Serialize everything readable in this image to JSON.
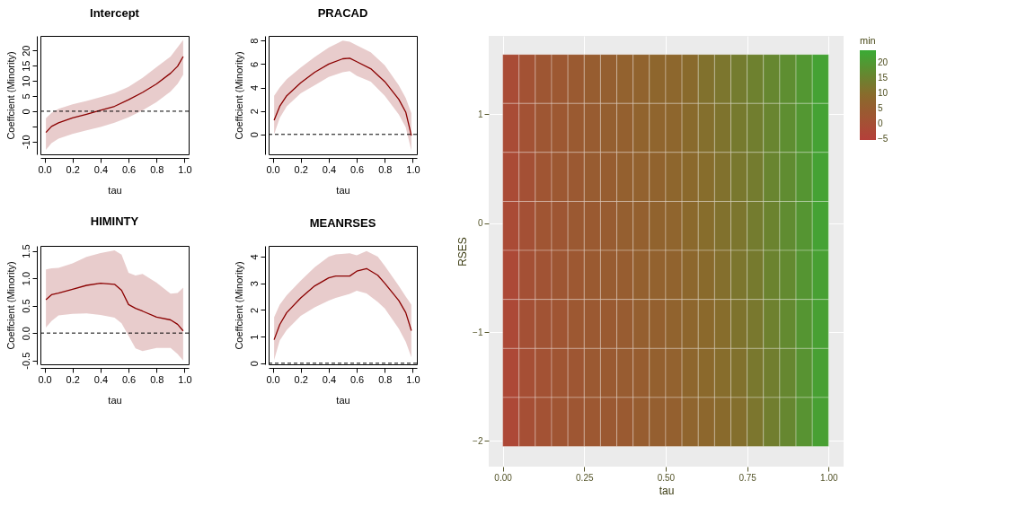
{
  "chart_data": [
    {
      "type": "line",
      "title": "Intercept",
      "xlabel": "tau",
      "ylabel": "Coeffcient (Minority)",
      "xlim": [
        -0.0292,
        1.0292
      ],
      "xticks": [
        {
          "value": 0,
          "label": "0.0"
        },
        {
          "value": 0.2,
          "label": "0.2"
        },
        {
          "value": 0.4,
          "label": "0.4"
        },
        {
          "value": 0.6,
          "label": "0.6"
        },
        {
          "value": 0.8,
          "label": "0.8"
        },
        {
          "value": 1,
          "label": "1.0"
        }
      ],
      "ylim": [
        -14.2,
        24.8
      ],
      "yticks": [
        -10,
        {
          "value": -5,
          "label": null
        },
        0,
        5,
        10,
        15,
        20
      ],
      "x": [
        0.01,
        0.05,
        0.1,
        0.2,
        0.3,
        0.4,
        0.5,
        0.6,
        0.7,
        0.8,
        0.9,
        0.95,
        0.99
      ],
      "series": [
        {
          "color": "#8b0000",
          "values": [
            -7,
            -5,
            -3.8,
            -2.2,
            -1,
            0.3,
            1.6,
            3.8,
            6.2,
            9,
            12.5,
            14.8,
            18
          ],
          "lower": [
            -12.7,
            -10.5,
            -9,
            -7.5,
            -6.3,
            -5.2,
            -3.8,
            -2,
            0.3,
            3,
            6.5,
            9,
            12
          ],
          "upper": [
            -2.3,
            -0.5,
            0.8,
            2.3,
            3.4,
            4.6,
            6,
            8,
            11,
            14.5,
            18,
            21,
            23.5
          ]
        }
      ],
      "ref_lines": [
        {
          "axis": "y",
          "value": 0,
          "line_style": "dashed"
        }
      ]
    },
    {
      "type": "line",
      "title": "PRACAD",
      "xlabel": "tau",
      "ylabel": "Coeffcient (Minority)",
      "xlim": [
        -0.0292,
        1.0292
      ],
      "xticks": [
        {
          "value": 0,
          "label": "0.0"
        },
        {
          "value": 0.2,
          "label": "0.2"
        },
        {
          "value": 0.4,
          "label": "0.4"
        },
        {
          "value": 0.6,
          "label": "0.6"
        },
        {
          "value": 0.8,
          "label": "0.8"
        },
        {
          "value": 1,
          "label": "1.0"
        }
      ],
      "ylim": [
        -1.7,
        8.4
      ],
      "yticks": [
        0,
        2,
        4,
        6,
        8
      ],
      "x": [
        0.01,
        0.05,
        0.1,
        0.2,
        0.3,
        0.4,
        0.5,
        0.55,
        0.6,
        0.7,
        0.8,
        0.9,
        0.95,
        0.99
      ],
      "series": [
        {
          "color": "#8b0000",
          "values": [
            1.2,
            2.4,
            3.3,
            4.4,
            5.3,
            6.0,
            6.45,
            6.5,
            6.2,
            5.6,
            4.5,
            3.0,
            1.9,
            -0.1
          ],
          "lower": [
            0,
            1.4,
            2.4,
            3.5,
            4.2,
            4.9,
            5.3,
            5.4,
            5.0,
            4.5,
            3.3,
            1.7,
            0.6,
            -1.4
          ],
          "upper": [
            3.3,
            4.0,
            4.7,
            5.7,
            6.6,
            7.4,
            8.0,
            7.9,
            7.6,
            7.0,
            5.9,
            4.2,
            3.1,
            1.8
          ]
        }
      ],
      "ref_lines": [
        {
          "axis": "y",
          "value": 0,
          "line_style": "dashed"
        }
      ]
    },
    {
      "type": "line",
      "title": "HIMINTY",
      "xlabel": "tau",
      "ylabel": "Coeffcient (Minority)",
      "xlim": [
        -0.0292,
        1.0292
      ],
      "xticks": [
        {
          "value": 0,
          "label": "0.0"
        },
        {
          "value": 0.2,
          "label": "0.2"
        },
        {
          "value": 0.4,
          "label": "0.4"
        },
        {
          "value": 0.6,
          "label": "0.6"
        },
        {
          "value": 0.8,
          "label": "0.8"
        },
        {
          "value": 1,
          "label": "1.0"
        }
      ],
      "ylim": [
        -0.57,
        1.59
      ],
      "yticks": [
        {
          "value": -0.5,
          "label": "-0.5"
        },
        {
          "value": 0,
          "label": "0.0"
        },
        {
          "value": 0.5,
          "label": "0.5"
        },
        {
          "value": 1,
          "label": "1.0"
        },
        {
          "value": 1.5,
          "label": "1.5"
        }
      ],
      "x": [
        0.01,
        0.05,
        0.1,
        0.2,
        0.3,
        0.4,
        0.5,
        0.55,
        0.6,
        0.65,
        0.7,
        0.8,
        0.9,
        0.95,
        0.99
      ],
      "series": [
        {
          "color": "#8b0000",
          "values": [
            0.61,
            0.7,
            0.73,
            0.8,
            0.87,
            0.91,
            0.89,
            0.78,
            0.52,
            0.45,
            0.4,
            0.29,
            0.24,
            0.16,
            0.04
          ],
          "lower": [
            0.1,
            0.22,
            0.32,
            0.35,
            0.36,
            0.33,
            0.28,
            0.18,
            -0.05,
            -0.28,
            -0.33,
            -0.27,
            -0.27,
            -0.38,
            -0.5
          ],
          "upper": [
            1.16,
            1.18,
            1.19,
            1.27,
            1.39,
            1.46,
            1.51,
            1.43,
            1.1,
            1.05,
            1.08,
            0.92,
            0.72,
            0.73,
            0.83
          ]
        }
      ],
      "ref_lines": [
        {
          "axis": "y",
          "value": 0,
          "line_style": "dashed"
        }
      ]
    },
    {
      "type": "line",
      "title": "MEANRSES",
      "xlabel": "tau",
      "ylabel": "Coeffcient (Minority)",
      "xlim": [
        -0.0292,
        1.0292
      ],
      "xticks": [
        {
          "value": 0,
          "label": "0.0"
        },
        {
          "value": 0.2,
          "label": "0.2"
        },
        {
          "value": 0.4,
          "label": "0.4"
        },
        {
          "value": 0.6,
          "label": "0.6"
        },
        {
          "value": 0.8,
          "label": "0.8"
        },
        {
          "value": 1,
          "label": "1.0"
        }
      ],
      "ylim": [
        -0.04,
        4.4
      ],
      "yticks": [
        0,
        1,
        2,
        3,
        4
      ],
      "x": [
        0.01,
        0.05,
        0.1,
        0.2,
        0.3,
        0.4,
        0.45,
        0.55,
        0.6,
        0.67,
        0.75,
        0.8,
        0.9,
        0.95,
        0.99
      ],
      "series": [
        {
          "color": "#8b0000",
          "values": [
            0.88,
            1.45,
            1.9,
            2.45,
            2.9,
            3.2,
            3.27,
            3.27,
            3.45,
            3.55,
            3.3,
            3.0,
            2.35,
            1.9,
            1.22
          ],
          "lower": [
            0.12,
            0.85,
            1.25,
            1.78,
            2.1,
            2.35,
            2.45,
            2.6,
            2.72,
            2.62,
            2.3,
            2.05,
            1.3,
            0.8,
            0.22
          ],
          "upper": [
            1.73,
            2.2,
            2.55,
            3.1,
            3.6,
            4.0,
            4.08,
            4.12,
            4.05,
            4.21,
            4.0,
            3.65,
            2.9,
            2.5,
            2.2
          ]
        }
      ],
      "ref_lines": [
        {
          "axis": "y",
          "value": 0,
          "line_style": "dashed"
        }
      ]
    },
    {
      "type": "heatmap",
      "xlabel": "tau",
      "ylabel": "RSES",
      "clabel": "min",
      "grid": true,
      "xlim": [
        -0.043,
        1.046
      ],
      "xticks": [
        {
          "value": 0,
          "label": "0.00"
        },
        {
          "value": 0.25,
          "label": "0.25"
        },
        {
          "value": 0.5,
          "label": "0.50"
        },
        {
          "value": 0.75,
          "label": "0.75"
        },
        {
          "value": 1,
          "label": "1.00"
        }
      ],
      "ylim": [
        -2.235,
        1.72
      ],
      "yticks": [
        {
          "value": -2,
          "label": "−2"
        },
        {
          "value": -1,
          "label": "−1"
        },
        {
          "value": 0,
          "label": "0"
        },
        {
          "value": 1,
          "label": "1"
        }
      ],
      "clim": [
        -5.2,
        24
      ],
      "cticks": [
        {
          "value": -5,
          "label": "−5"
        },
        0,
        5,
        10,
        15,
        20
      ],
      "colors": [
        "#b5403a",
        "#8a6a2c",
        "#3aab35"
      ],
      "x": [
        0.025,
        0.075,
        0.125,
        0.175,
        0.225,
        0.275,
        0.325,
        0.375,
        0.425,
        0.475,
        0.525,
        0.575,
        0.625,
        0.675,
        0.725,
        0.775,
        0.825,
        0.875,
        0.925,
        0.975
      ],
      "y": [
        1.325,
        0.875,
        0.425,
        -0.025,
        -0.475,
        -0.925,
        -1.375,
        -1.825
      ],
      "cells": [
        [
          -1,
          1,
          2.5,
          3,
          4,
          5,
          5.5,
          6.5,
          7,
          8,
          8.5,
          9.5,
          11,
          12,
          13.5,
          14.5,
          16,
          17.5,
          19.5,
          22
        ],
        [
          -1,
          1,
          2.5,
          3,
          4,
          4.5,
          5.5,
          6,
          7,
          7.5,
          8,
          9.5,
          10.5,
          11.5,
          13,
          14,
          15.5,
          17.5,
          19.5,
          22
        ],
        [
          -1.5,
          0.5,
          2,
          3,
          3.5,
          4.5,
          5,
          6,
          6.5,
          7,
          8,
          9,
          10,
          11,
          12.5,
          13.5,
          15.5,
          17,
          19,
          22
        ],
        [
          -1.5,
          0.5,
          2,
          2.5,
          3.5,
          4,
          4.5,
          5.5,
          6,
          7,
          7.5,
          9,
          10,
          11,
          12,
          13.5,
          15,
          17,
          19,
          22
        ],
        [
          -2,
          0.5,
          1.5,
          2.5,
          3,
          4,
          4.5,
          5,
          6,
          6.5,
          7,
          8.5,
          9.5,
          10.5,
          12,
          13,
          15,
          16.5,
          19,
          21.5
        ],
        [
          -2,
          0.5,
          1.5,
          2,
          3,
          3.5,
          4,
          4.5,
          5.5,
          6,
          7,
          8,
          9,
          10,
          11.5,
          12.5,
          14.5,
          16.5,
          19,
          21.5
        ],
        [
          -2.5,
          0,
          1,
          2,
          2.5,
          3.5,
          4,
          4.5,
          5,
          6,
          6.5,
          8,
          9,
          10,
          11,
          12.5,
          14,
          16,
          18.5,
          21.5
        ],
        [
          -2.5,
          0,
          1,
          2,
          2.5,
          3,
          3.5,
          4,
          5,
          5.5,
          6,
          7.5,
          8.5,
          9.5,
          10.5,
          12,
          14,
          16,
          18.5,
          21.5
        ]
      ]
    }
  ]
}
